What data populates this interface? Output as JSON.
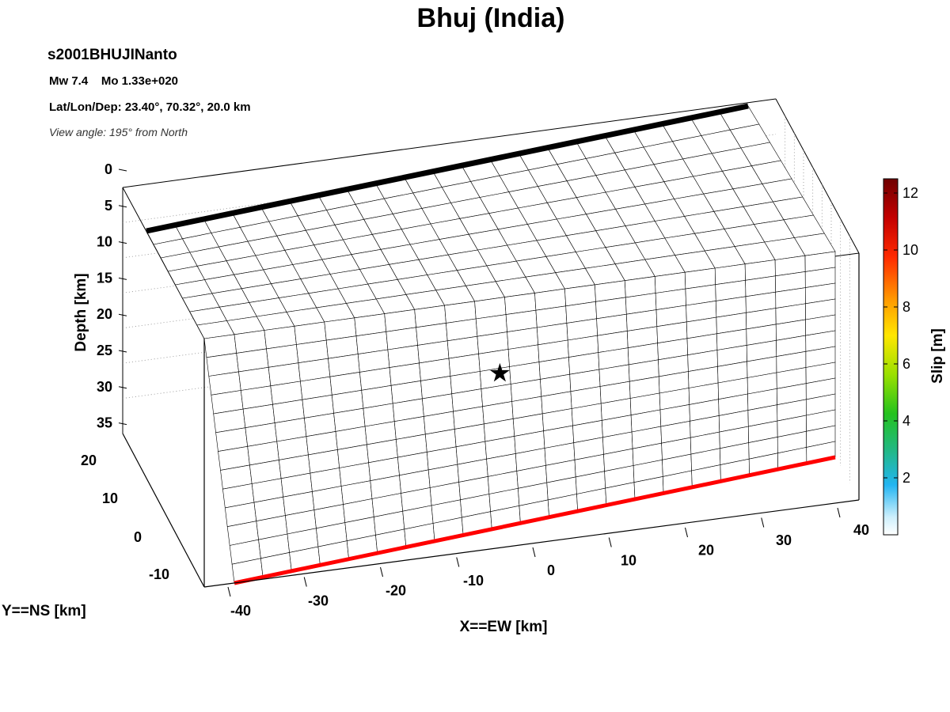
{
  "title": "Bhuj (India)",
  "header": {
    "event_id": "s2001BHUJINanto",
    "magnitude": "Mw 7.4    Mo 1.33e+020",
    "location": "Lat/Lon/Dep: 23.40°, 70.32°, 20.0 km",
    "view_angle": "View angle: 195° from North"
  },
  "colors": {
    "surface_trace": "#000000",
    "bottom_edge": "#ff0000",
    "grid": "#000000",
    "hypocenter": "#000000"
  },
  "chart_data": {
    "type": "heatmap",
    "title": "Bhuj (India)",
    "x_axis": {
      "label": "X==EW [km]",
      "ticks": [
        "-40",
        "-30",
        "-20",
        "-10",
        "0",
        "10",
        "20",
        "30",
        "40"
      ],
      "range": [
        -45,
        45
      ]
    },
    "y_axis": {
      "label": "Y==NS [km]",
      "ticks": [
        "-10",
        "0",
        "10",
        "20"
      ],
      "range": [
        -15,
        25
      ]
    },
    "z_axis": {
      "label": "Depth [km]",
      "ticks": [
        "0",
        "5",
        "10",
        "15",
        "20",
        "25",
        "30",
        "35"
      ],
      "range": [
        0,
        37
      ]
    },
    "colorbar": {
      "label": "Slip [m]",
      "ticks": [
        "2",
        "4",
        "6",
        "8",
        "10",
        "12"
      ],
      "range": [
        0,
        12.5
      ],
      "placement": "right"
    },
    "grid": true,
    "fault": {
      "strike_cells": 21,
      "dip_cells": 21
    },
    "slip_rows_top_to_bottom": [
      [
        0,
        0,
        0,
        0,
        0,
        0,
        0,
        0,
        0,
        0,
        0,
        0,
        0,
        0,
        0,
        0,
        0,
        0,
        0,
        0,
        0
      ],
      [
        0,
        0,
        0,
        0,
        0,
        0,
        0,
        0,
        0,
        0,
        0,
        0,
        0,
        0,
        0,
        0,
        0,
        0,
        0,
        0,
        0
      ],
      [
        0,
        0,
        0,
        0,
        0,
        0,
        0,
        0,
        0,
        0,
        0,
        0,
        0,
        0,
        0,
        0,
        0,
        0,
        0,
        0,
        0
      ],
      [
        0,
        0,
        0,
        0,
        0,
        0,
        0,
        0,
        0,
        0,
        0,
        0,
        0,
        0,
        0,
        0,
        0,
        0,
        0,
        0,
        0
      ],
      [
        0,
        0,
        0,
        0,
        0,
        0,
        0,
        0,
        0,
        0,
        0,
        0,
        0,
        0,
        0,
        0,
        0,
        0,
        0,
        0,
        0
      ],
      [
        0,
        0,
        0,
        0,
        0,
        0,
        0,
        0,
        0,
        0,
        0,
        0,
        0,
        0,
        0,
        0,
        0,
        0,
        0,
        0,
        0
      ],
      [
        0,
        0,
        0,
        0,
        0,
        0,
        0,
        0,
        0,
        0,
        0,
        0,
        0,
        0,
        0,
        0,
        0,
        0,
        0,
        0,
        0
      ],
      [
        0,
        0,
        0,
        0,
        0,
        0,
        0,
        0,
        0,
        0,
        0,
        0,
        0,
        0,
        0,
        0,
        0,
        0,
        0,
        0,
        0
      ],
      [
        0,
        0,
        0,
        0,
        0,
        0,
        0,
        0,
        0,
        0,
        0,
        0,
        0,
        0,
        0,
        0,
        0,
        0,
        0,
        0,
        0
      ],
      [
        0,
        0,
        0,
        0,
        0,
        0,
        0,
        0,
        0,
        0,
        0,
        0,
        0,
        0,
        0,
        0,
        0,
        0,
        0,
        0,
        0
      ],
      [
        0,
        0,
        0,
        0,
        0,
        0,
        0,
        0,
        0,
        0,
        0,
        0,
        0,
        0,
        0,
        0,
        0,
        0,
        0,
        0,
        0
      ],
      [
        0,
        0,
        0,
        0,
        0,
        0,
        0,
        0,
        0,
        0,
        0,
        0,
        0,
        0,
        0,
        0,
        0,
        0,
        0,
        0,
        0
      ],
      [
        0,
        0,
        0,
        0,
        0,
        0,
        0,
        0,
        0,
        0,
        0,
        0,
        0,
        0,
        0,
        0,
        0,
        0,
        0,
        0,
        0
      ],
      [
        0,
        0,
        0,
        0,
        0,
        0,
        0,
        0,
        0,
        0,
        0,
        0,
        0,
        0,
        0,
        0,
        0,
        0,
        0,
        0,
        0
      ],
      [
        0,
        0,
        0,
        0,
        0,
        0,
        0,
        0,
        0,
        0,
        0,
        0,
        0,
        0,
        0,
        0,
        0,
        0,
        0,
        0,
        0
      ],
      [
        0,
        0,
        0,
        0,
        0,
        0,
        0,
        0,
        0,
        0,
        0,
        0,
        0,
        0,
        0,
        0,
        0,
        0,
        0,
        0,
        0
      ],
      [
        0,
        0,
        0,
        0,
        0,
        0,
        0,
        0,
        0,
        0,
        0,
        0,
        0,
        0,
        0,
        0,
        0,
        0,
        0,
        0,
        0
      ],
      [
        0,
        0,
        0,
        0,
        0,
        0,
        0,
        0,
        0,
        0,
        0,
        0,
        0,
        0,
        0,
        0,
        0,
        0,
        0,
        0,
        0
      ],
      [
        0,
        0,
        0,
        0,
        0,
        0,
        0,
        0,
        0,
        0,
        0,
        0,
        0,
        0,
        0,
        0,
        0,
        0,
        0,
        0,
        0
      ],
      [
        0,
        0,
        0,
        0,
        0,
        0,
        0,
        0,
        0,
        0,
        0,
        0,
        0,
        0,
        0,
        0,
        0,
        0,
        0,
        0,
        0
      ],
      [
        0,
        0,
        0,
        0,
        0,
        0,
        0,
        0,
        0,
        0,
        0,
        0,
        0,
        0,
        0,
        0,
        0,
        0,
        0,
        0,
        0
      ]
    ],
    "hypocenter": {
      "x_km": 0,
      "y_km": 0,
      "depth_km": 20.0
    }
  }
}
